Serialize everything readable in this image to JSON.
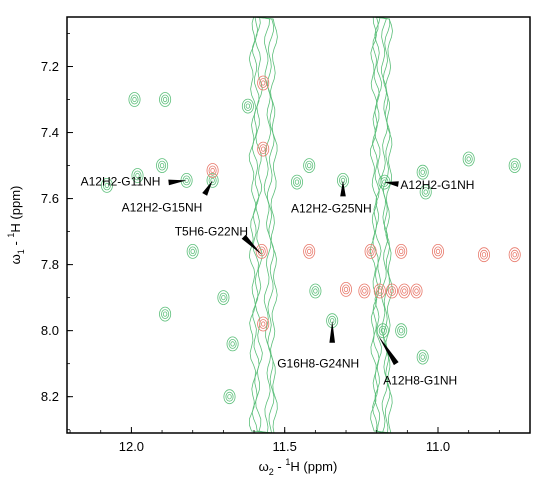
{
  "chart_data": {
    "type": "contour",
    "xlabel": {
      "main": "ω",
      "sub": "2",
      "rest": " - ",
      "sup": "1",
      "tail": "H  (ppm)"
    },
    "ylabel": {
      "main": "ω",
      "sub": "1",
      "rest": " - ",
      "sup": "1",
      "tail": "H  (ppm)"
    },
    "x_reversed": true,
    "y_reversed": true,
    "xlim": [
      12.21,
      10.7
    ],
    "ylim": [
      7.05,
      8.31
    ],
    "x_ticks": [
      12.0,
      11.5,
      11.0
    ],
    "x_tick_labels": [
      "12.0",
      "11.5",
      "11.0"
    ],
    "y_ticks": [
      7.2,
      7.4,
      7.6,
      7.8,
      8.0,
      8.2
    ],
    "y_tick_labels": [
      "7.2",
      "7.4",
      "7.6",
      "7.8",
      "8.0",
      "8.2"
    ],
    "colors": {
      "series_a": "#5cbf7a",
      "series_b": "#e8786a"
    },
    "annotations": [
      {
        "label": "A12H2-G11NH",
        "x": 11.82,
        "y": 7.545
      },
      {
        "label": "A12H2-G15NH",
        "x": 11.735,
        "y": 7.545
      },
      {
        "label": "T5H6-G22NH",
        "x": 11.575,
        "y": 7.77
      },
      {
        "label": "A12H2-G25NH",
        "x": 11.31,
        "y": 7.545
      },
      {
        "label": "A12H2-G1NH",
        "x": 11.175,
        "y": 7.55
      },
      {
        "label": "G16H8-G24NH",
        "x": 11.345,
        "y": 7.97
      },
      {
        "label": "A12H8-G1NH",
        "x": 11.195,
        "y": 8.015
      }
    ],
    "streaks": [
      {
        "x": 11.57,
        "width": 0.07,
        "series": "series_a"
      },
      {
        "x": 11.185,
        "width": 0.05,
        "series": "series_a"
      }
    ],
    "peaks": [
      {
        "x": 11.82,
        "y": 7.545,
        "series": "series_a"
      },
      {
        "x": 11.735,
        "y": 7.545,
        "series": "series_a"
      },
      {
        "x": 11.735,
        "y": 7.515,
        "series": "series_b"
      },
      {
        "x": 11.31,
        "y": 7.545,
        "series": "series_a"
      },
      {
        "x": 11.175,
        "y": 7.55,
        "series": "series_a"
      },
      {
        "x": 11.345,
        "y": 7.97,
        "series": "series_a"
      },
      {
        "x": 11.575,
        "y": 7.76,
        "series": "series_b"
      },
      {
        "x": 11.57,
        "y": 7.25,
        "series": "series_b"
      },
      {
        "x": 11.57,
        "y": 7.45,
        "series": "series_b"
      },
      {
        "x": 11.57,
        "y": 7.98,
        "series": "series_b"
      },
      {
        "x": 11.19,
        "y": 7.88,
        "series": "series_b"
      },
      {
        "x": 11.15,
        "y": 7.88,
        "series": "series_b"
      },
      {
        "x": 11.11,
        "y": 7.88,
        "series": "series_b"
      },
      {
        "x": 11.3,
        "y": 7.875,
        "series": "series_b"
      },
      {
        "x": 11.24,
        "y": 7.88,
        "series": "series_b"
      },
      {
        "x": 11.07,
        "y": 7.88,
        "series": "series_b"
      },
      {
        "x": 11.22,
        "y": 7.76,
        "series": "series_b"
      },
      {
        "x": 11.12,
        "y": 7.76,
        "series": "series_b"
      },
      {
        "x": 11.0,
        "y": 7.76,
        "series": "series_b"
      },
      {
        "x": 10.85,
        "y": 7.77,
        "series": "series_b"
      },
      {
        "x": 10.75,
        "y": 7.77,
        "series": "series_b"
      },
      {
        "x": 11.42,
        "y": 7.76,
        "series": "series_b"
      },
      {
        "x": 11.18,
        "y": 8.0,
        "series": "series_a"
      },
      {
        "x": 11.12,
        "y": 8.0,
        "series": "series_a"
      },
      {
        "x": 11.4,
        "y": 7.88,
        "series": "series_a"
      },
      {
        "x": 11.67,
        "y": 8.04,
        "series": "series_a"
      },
      {
        "x": 11.89,
        "y": 7.95,
        "series": "series_a"
      },
      {
        "x": 12.08,
        "y": 7.56,
        "series": "series_a"
      },
      {
        "x": 11.98,
        "y": 7.53,
        "series": "series_a"
      },
      {
        "x": 11.9,
        "y": 7.5,
        "series": "series_a"
      },
      {
        "x": 11.42,
        "y": 7.5,
        "series": "series_a"
      },
      {
        "x": 11.46,
        "y": 7.55,
        "series": "series_a"
      },
      {
        "x": 11.05,
        "y": 7.52,
        "series": "series_a"
      },
      {
        "x": 11.04,
        "y": 7.58,
        "series": "series_a"
      },
      {
        "x": 10.9,
        "y": 7.48,
        "series": "series_a"
      },
      {
        "x": 11.05,
        "y": 8.08,
        "series": "series_a"
      },
      {
        "x": 11.68,
        "y": 8.2,
        "series": "series_a"
      },
      {
        "x": 11.99,
        "y": 7.3,
        "series": "series_a"
      },
      {
        "x": 11.89,
        "y": 7.3,
        "series": "series_a"
      },
      {
        "x": 11.62,
        "y": 7.32,
        "series": "series_a"
      },
      {
        "x": 11.8,
        "y": 7.76,
        "series": "series_a"
      },
      {
        "x": 11.7,
        "y": 7.9,
        "series": "series_a"
      },
      {
        "x": 10.75,
        "y": 7.5,
        "series": "series_a"
      }
    ]
  }
}
